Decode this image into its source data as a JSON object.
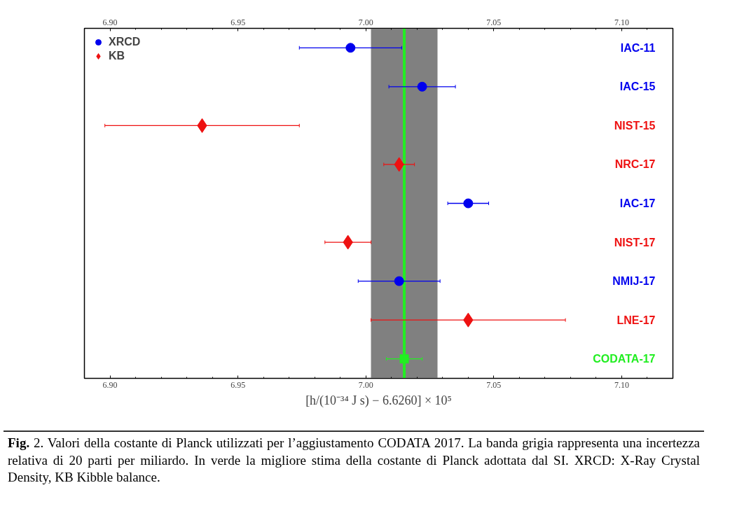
{
  "chart_data": {
    "type": "scatter",
    "orientation": "horizontal",
    "categories": [
      "IAC-11",
      "IAC-15",
      "NIST-15",
      "NRC-17",
      "IAC-17",
      "NIST-17",
      "NMIJ-17",
      "LNE-17",
      "CODATA-17"
    ],
    "series": [
      {
        "name": "XRCD",
        "color": "#0000ee",
        "marker": "circle",
        "values": [
          6.994,
          7.022,
          null,
          null,
          7.04,
          null,
          7.013,
          null,
          null
        ],
        "errors": [
          0.02,
          0.013,
          null,
          null,
          0.008,
          null,
          0.016,
          null,
          null
        ]
      },
      {
        "name": "KB",
        "color": "#ee1111",
        "marker": "diamond",
        "values": [
          null,
          null,
          6.936,
          7.013,
          null,
          6.993,
          null,
          7.04,
          null
        ],
        "errors": [
          null,
          null,
          0.038,
          0.006,
          null,
          0.009,
          null,
          0.038,
          null
        ]
      },
      {
        "color": "#22ee22",
        "marker": "square",
        "values": [
          null,
          null,
          null,
          null,
          null,
          null,
          null,
          null,
          7.015
        ],
        "errors": [
          null,
          null,
          null,
          null,
          null,
          null,
          null,
          null,
          0.007
        ]
      }
    ],
    "xlabel": "[h/(10⁻³⁴ J s) − 6.6260] × 10⁵",
    "xlim": [
      6.89,
      7.12
    ],
    "xticks": [
      {
        "value": 6.9,
        "label": "6.90"
      },
      {
        "value": 6.91,
        "label": null
      },
      {
        "value": 6.92,
        "label": null
      },
      {
        "value": 6.93,
        "label": null
      },
      {
        "value": 6.94,
        "label": null
      },
      6.95,
      {
        "value": 6.96,
        "label": null
      },
      {
        "value": 6.97,
        "label": null
      },
      {
        "value": 6.98,
        "label": null
      },
      {
        "value": 6.99,
        "label": null
      },
      {
        "value": 7,
        "label": "7.00"
      },
      {
        "value": 7.01,
        "label": null
      },
      {
        "value": 7.02,
        "label": null
      },
      {
        "value": 7.03,
        "label": null
      },
      {
        "value": 7.04,
        "label": null
      },
      7.05,
      {
        "value": 7.06,
        "label": null
      },
      {
        "value": 7.07,
        "label": null
      },
      {
        "value": 7.08,
        "label": null
      },
      {
        "value": 7.09,
        "label": null
      },
      {
        "value": 7.1,
        "label": "7.10"
      },
      {
        "value": 7.11,
        "label": null
      }
    ],
    "x2lim": [
      6.89,
      7.12
    ],
    "x2ticks": [
      {
        "value": 6.9,
        "label": "6.90"
      },
      {
        "value": 6.91,
        "label": null
      },
      {
        "value": 6.92,
        "label": null
      },
      {
        "value": 6.93,
        "label": null
      },
      {
        "value": 6.94,
        "label": null
      },
      6.95,
      {
        "value": 6.96,
        "label": null
      },
      {
        "value": 6.97,
        "label": null
      },
      {
        "value": 6.98,
        "label": null
      },
      {
        "value": 6.99,
        "label": null
      },
      {
        "value": 7,
        "label": "7.00"
      },
      {
        "value": 7.01,
        "label": null
      },
      {
        "value": 7.02,
        "label": null
      },
      {
        "value": 7.03,
        "label": null
      },
      {
        "value": 7.04,
        "label": null
      },
      7.05,
      {
        "value": 7.06,
        "label": null
      },
      {
        "value": 7.07,
        "label": null
      },
      {
        "value": 7.08,
        "label": null
      },
      {
        "value": 7.09,
        "label": null
      },
      {
        "value": 7.1,
        "label": "7.10"
      },
      {
        "value": 7.11,
        "label": null
      }
    ],
    "bands": [
      {
        "axis": "x",
        "from": 7.002,
        "to": 7.028,
        "color": "#808080"
      }
    ],
    "ref_lines": [
      {
        "axis": "x",
        "value": 7.015,
        "color": "#22ee22",
        "line_style": "solid"
      }
    ],
    "legend": "top left",
    "grid": false,
    "tick_labels": "x",
    "annotations": [
      "Fig. 2. Valori della costante di Planck utilizzati per l’aggiustamento CODATA 2017. La banda grigia rappresenta una incertezza relativa di 20 parti per miliardo. In verde la migliore stima della costante di Planck adottata dal SI. XRCD: X-Ray Crystal Density, KB Kibble balance."
    ]
  }
}
